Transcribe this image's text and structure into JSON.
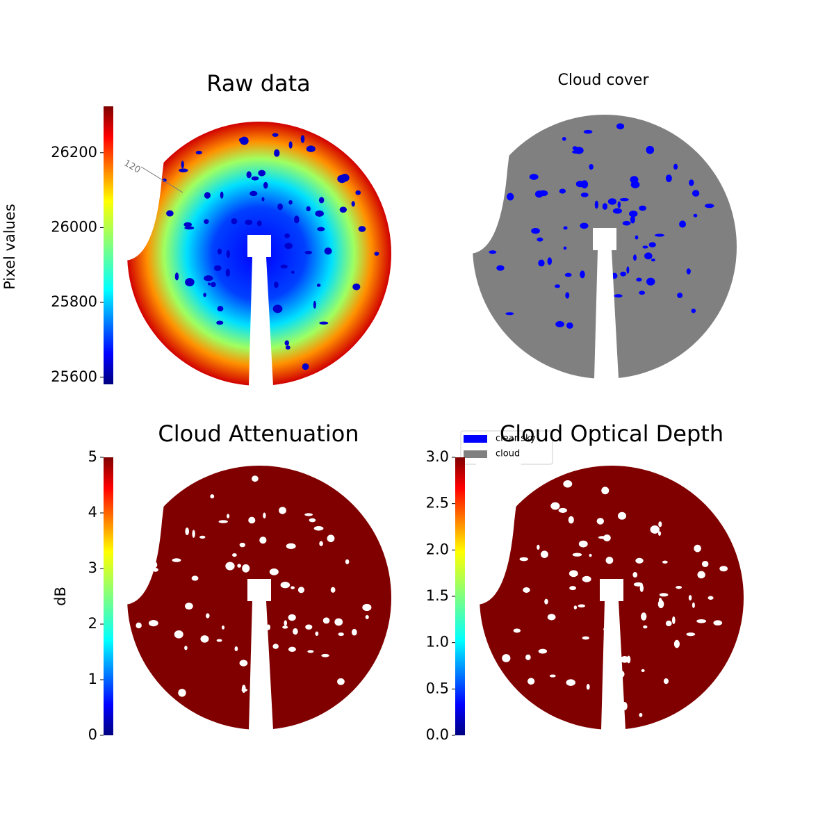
{
  "chart_data": [
    {
      "type": "image",
      "title": "Raw data",
      "annotation": "120",
      "colorbar": {
        "label": "Pixel values",
        "ylim": [
          25581,
          26324
        ],
        "yticks": [
          25600,
          25800,
          26000,
          26200
        ]
      }
    },
    {
      "type": "image",
      "title": "Cloud cover",
      "legend": [
        {
          "name": "clear sky",
          "color": "#0000ff"
        },
        {
          "name": "cloud",
          "color": "#808080"
        }
      ]
    },
    {
      "type": "image",
      "title": "Cloud Attenuation",
      "colorbar": {
        "label": "dB",
        "ylim": [
          0,
          5
        ],
        "yticks": [
          0,
          1,
          2,
          3,
          4,
          5
        ]
      }
    },
    {
      "type": "image",
      "title": "Cloud Optical Depth",
      "colorbar": {
        "ylim": [
          0,
          3
        ],
        "yticks": [
          {
            "value": 0,
            "label": "0.0"
          },
          0.5,
          {
            "value": 1,
            "label": "1.0"
          },
          1.5,
          {
            "value": 2,
            "label": "2.0"
          },
          2.5,
          {
            "value": 3,
            "label": "3.0"
          }
        ]
      }
    }
  ]
}
